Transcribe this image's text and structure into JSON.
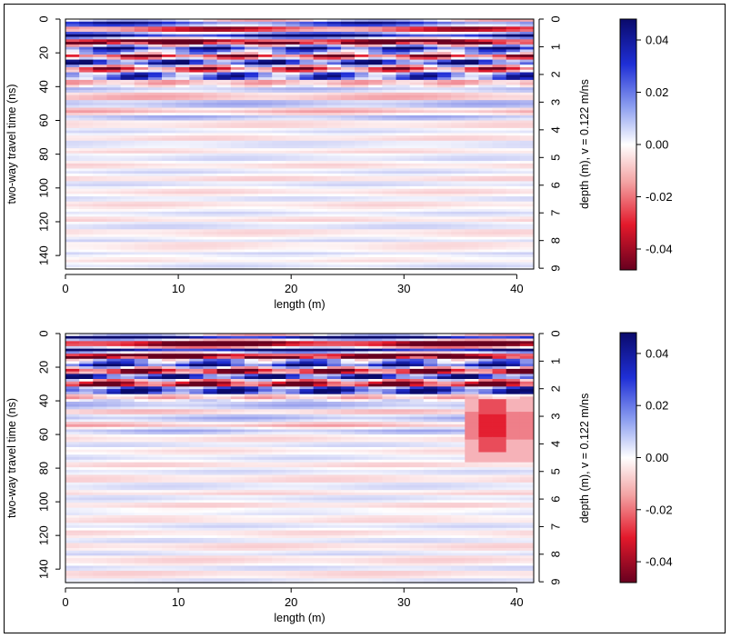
{
  "chart_data": [
    {
      "type": "heatmap",
      "title": "",
      "xlabel": "length (m)",
      "ylabel": "two-way travel time (ns)",
      "y2label": "depth (m),  v = 0.122 m/ns",
      "xlim": [
        0,
        41.5
      ],
      "ylim": [
        0,
        148
      ],
      "x_ticks": [
        0,
        10,
        20,
        30,
        40
      ],
      "y_ticks": [
        0,
        20,
        40,
        60,
        80,
        100,
        120,
        140
      ],
      "depth_ticks": [
        0,
        1,
        2,
        3,
        4,
        5,
        6,
        7,
        8,
        9
      ],
      "velocity_m_per_ns": 0.122,
      "colorbar": {
        "min": -0.048,
        "max": 0.048,
        "ticks": [
          "0.04",
          "0.02",
          "0.00",
          "-0.02",
          "-0.04"
        ],
        "tick_values": [
          0.04,
          0.02,
          0.0,
          -0.02,
          -0.04
        ],
        "low_color": "#67001f",
        "mid_color": "#ffffff",
        "high_color": "#0a0a6b"
      },
      "anomaly": null
    },
    {
      "type": "heatmap",
      "title": "",
      "xlabel": "length (m)",
      "ylabel": "two-way travel time (ns)",
      "y2label": "depth (m),  v = 0.122 m/ns",
      "xlim": [
        0,
        41.5
      ],
      "ylim": [
        0,
        148
      ],
      "x_ticks": [
        0,
        10,
        20,
        30,
        40
      ],
      "y_ticks": [
        0,
        20,
        40,
        60,
        80,
        100,
        120,
        140
      ],
      "depth_ticks": [
        0,
        1,
        2,
        3,
        4,
        5,
        6,
        7,
        8,
        9
      ],
      "velocity_m_per_ns": 0.122,
      "colorbar": {
        "min": -0.048,
        "max": 0.048,
        "ticks": [
          "0.04",
          "0.02",
          "0.00",
          "-0.02",
          "-0.04"
        ],
        "tick_values": [
          0.04,
          0.02,
          0.0,
          -0.02,
          -0.04
        ],
        "low_color": "#67001f",
        "mid_color": "#ffffff",
        "high_color": "#0a0a6b"
      },
      "anomaly": {
        "x_range": [
          35,
          41
        ],
        "t_range": [
          38,
          75
        ],
        "core_x_range": [
          37,
          39
        ],
        "core_t_range": [
          38,
          70
        ],
        "min_value": -0.035
      }
    }
  ]
}
